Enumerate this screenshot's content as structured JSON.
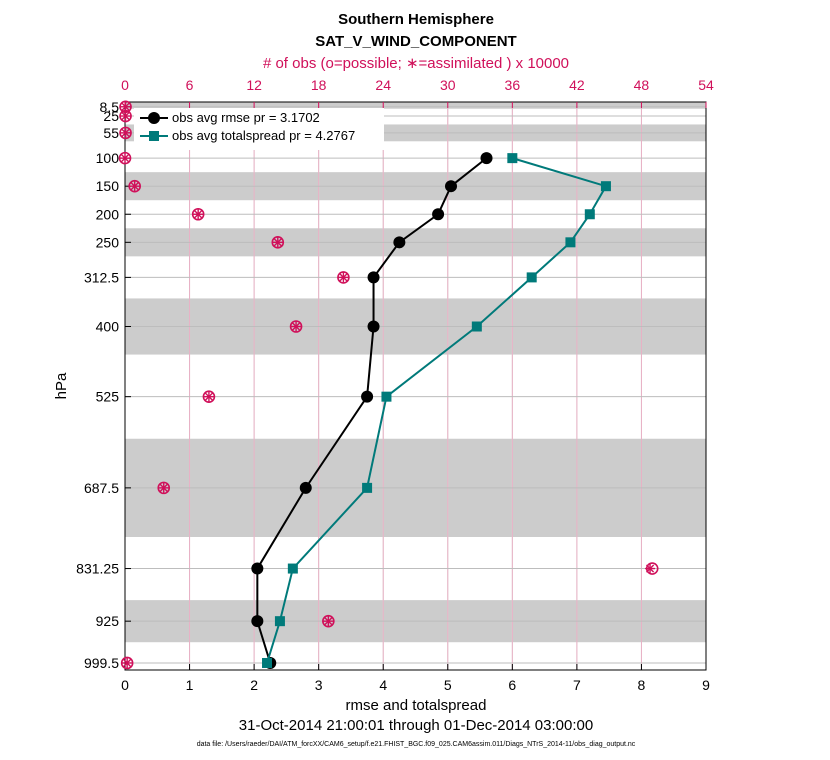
{
  "chart_data": {
    "type": "line",
    "title": "Southern Hemisphere",
    "subtitle": "SAT_V_WIND_COMPONENT",
    "xlabel": "rmse and totalspread",
    "ylabel": "hPa",
    "xlim": [
      0,
      9
    ],
    "x_ticks": [
      "0",
      "1",
      "2",
      "3",
      "4",
      "5",
      "6",
      "7",
      "8",
      "9"
    ],
    "top_axis_label": "# of obs (o=possible; ∗=assimilated ) x 10000",
    "top_xlim": [
      0,
      54
    ],
    "top_ticks": [
      "0",
      "6",
      "12",
      "18",
      "24",
      "30",
      "36",
      "42",
      "48",
      "54"
    ],
    "levels": [
      8.5,
      25,
      55,
      100,
      150,
      200,
      250,
      312.5,
      400,
      525,
      687.5,
      831.25,
      925,
      999.5
    ],
    "level_labels": [
      "8.5",
      "25",
      "55",
      "100",
      "150",
      "200",
      "250",
      "312.5",
      "400",
      "525",
      "687.5",
      "831.25",
      "925",
      "999.5"
    ],
    "level_bands": [
      [
        0,
        12
      ],
      [
        40,
        70
      ],
      [
        125,
        175
      ],
      [
        225,
        275
      ],
      [
        350,
        450
      ],
      [
        600,
        775
      ],
      [
        887.5,
        962.5
      ]
    ],
    "series": [
      {
        "name": "obs avg rmse pr = 3.1702",
        "color": "#000000",
        "marker": "circle",
        "levels": [
          100,
          150,
          200,
          250,
          312.5,
          400,
          525,
          687.5,
          831.25,
          925,
          999.5
        ],
        "values": [
          5.6,
          5.05,
          4.85,
          4.25,
          3.85,
          3.85,
          3.75,
          2.8,
          2.05,
          2.05,
          2.25
        ]
      },
      {
        "name": "obs avg totalspread pr = 4.2767",
        "color": "#007a7a",
        "marker": "square",
        "levels": [
          100,
          150,
          200,
          250,
          312.5,
          400,
          525,
          687.5,
          831.25,
          925,
          999.5
        ],
        "values": [
          6.0,
          7.45,
          7.2,
          6.9,
          6.3,
          5.45,
          4.05,
          3.75,
          2.6,
          2.4,
          2.2
        ]
      }
    ],
    "obs_counts": {
      "units": "x 10000",
      "levels": [
        8.5,
        25,
        55,
        100,
        150,
        200,
        250,
        312.5,
        400,
        525,
        687.5,
        831.25,
        925,
        999.5
      ],
      "possible": [
        0.05,
        0.05,
        0.05,
        0.0,
        0.9,
        6.8,
        14.2,
        20.3,
        15.9,
        7.8,
        3.6,
        49.0,
        18.9,
        0.2
      ],
      "assimilated": [
        0.05,
        0.05,
        0.05,
        0.0,
        0.9,
        6.8,
        14.2,
        20.3,
        15.9,
        7.8,
        3.6,
        48.8,
        18.9,
        0.2
      ]
    },
    "date_range": "31-Oct-2014 21:00:01 through 01-Dec-2014 03:00:00",
    "data_file": "data file: /Users/raeder/DAI/ATM_forcXX/CAM6_setup/f.e21.FHIST_BGC.f09_025.CAM6assim.011/Diags_NTrS_2014-11/obs_diag_output.nc",
    "colors": {
      "rmse": "#000000",
      "spread": "#007a7a",
      "obs": "#d0105a",
      "band": "#cccccc",
      "grid": "#e0e0e0",
      "topgrid": "#e8b0c4"
    }
  }
}
